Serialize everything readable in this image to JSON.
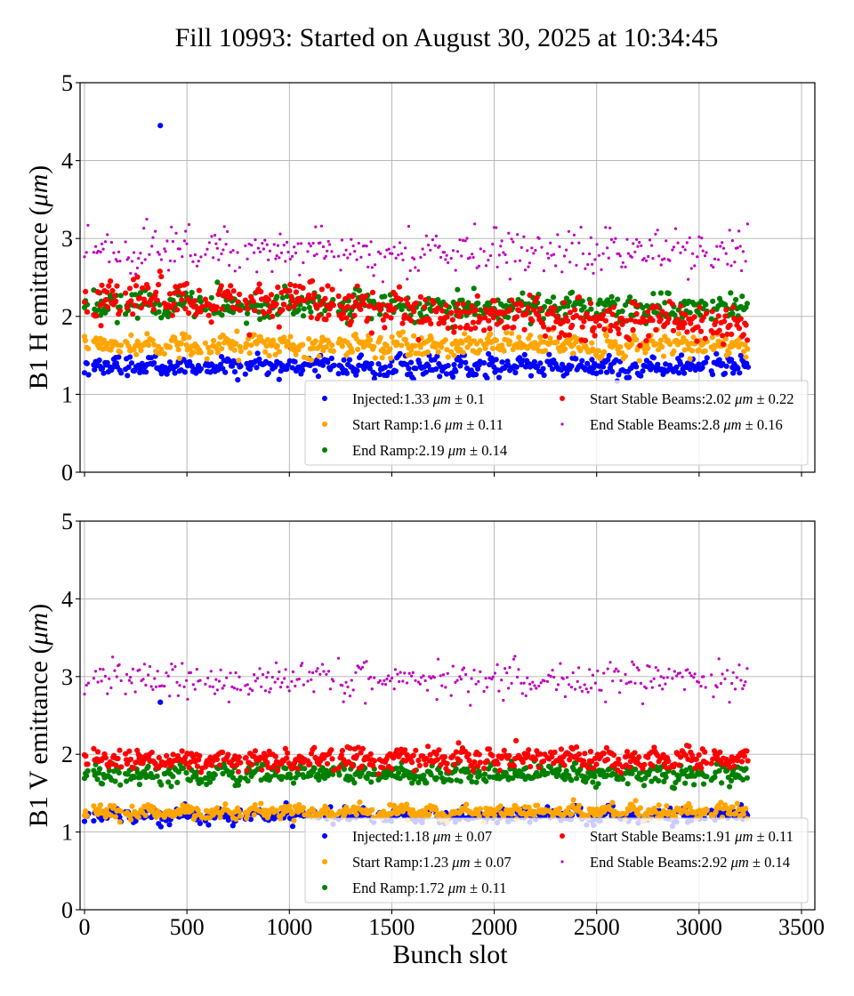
{
  "chart_data": [
    {
      "type": "scatter",
      "panel": "top",
      "title": "Fill 10993: Started on August 30, 2025 at 10:34:45",
      "xlabel": "",
      "ylabel": "B1 H emittance (μm)",
      "xlim": [
        -20,
        3560
      ],
      "ylim": [
        0,
        5
      ],
      "xticks": [
        0,
        500,
        1000,
        1500,
        2000,
        2500,
        3000,
        3500
      ],
      "xtick_labels_visible": false,
      "yticks": [
        0,
        1,
        2,
        3,
        4,
        5
      ],
      "ytick_labels": [
        "0",
        "1",
        "2",
        "3",
        "4",
        "5"
      ],
      "grid": true,
      "legend_position": "lower-right",
      "legend_ncol": 2,
      "series": [
        {
          "name": "Injected",
          "legend": "Injected:1.33 μm ± 0.1",
          "color": "#0000ff",
          "mean": 1.33,
          "std": 0.1,
          "marker": "large"
        },
        {
          "name": "Start Ramp",
          "legend": "Start Ramp:1.6 μm ± 0.11",
          "color": "#ffa500",
          "mean": 1.6,
          "std": 0.11,
          "marker": "large"
        },
        {
          "name": "End Ramp",
          "legend": "End Ramp:2.19 μm ± 0.14",
          "color": "#008000",
          "mean": 2.19,
          "std": 0.14,
          "marker": "large"
        },
        {
          "name": "Start Stable Beams",
          "legend": "Start Stable Beams:2.02 μm ± 0.22",
          "color": "#ff0000",
          "mean": 2.02,
          "std": 0.22,
          "marker": "large"
        },
        {
          "name": "End Stable Beams",
          "legend": "End Stable Beams:2.8 μm ± 0.16",
          "color": "#bf00bf",
          "mean": 2.8,
          "std": 0.16,
          "marker": "small"
        }
      ],
      "outliers": [
        {
          "series": "Injected",
          "x": 370,
          "y": 4.45
        }
      ],
      "trend": {
        "Start Stable Beams": [
          2.25,
          1.85
        ],
        "End Ramp": [
          2.15,
          2.05
        ]
      }
    },
    {
      "type": "scatter",
      "panel": "bottom",
      "title": "",
      "xlabel": "Bunch slot",
      "ylabel": "B1 V emittance (μm)",
      "xlim": [
        -20,
        3560
      ],
      "ylim": [
        0,
        5
      ],
      "xticks": [
        0,
        500,
        1000,
        1500,
        2000,
        2500,
        3000,
        3500
      ],
      "xtick_labels": [
        "0",
        "500",
        "1000",
        "1500",
        "2000",
        "2500",
        "3000",
        "3500"
      ],
      "yticks": [
        0,
        1,
        2,
        3,
        4,
        5
      ],
      "ytick_labels": [
        "0",
        "1",
        "2",
        "3",
        "4",
        "5"
      ],
      "grid": true,
      "legend_position": "lower-right",
      "legend_ncol": 2,
      "series": [
        {
          "name": "Injected",
          "legend": "Injected:1.18 μm ± 0.07",
          "color": "#0000ff",
          "mean": 1.18,
          "std": 0.07,
          "marker": "large"
        },
        {
          "name": "Start Ramp",
          "legend": "Start Ramp:1.23 μm ± 0.07",
          "color": "#ffa500",
          "mean": 1.23,
          "std": 0.07,
          "marker": "large"
        },
        {
          "name": "End Ramp",
          "legend": "End Ramp:1.72 μm ± 0.11",
          "color": "#008000",
          "mean": 1.72,
          "std": 0.11,
          "marker": "large"
        },
        {
          "name": "Start Stable Beams",
          "legend": "Start Stable Beams:1.91 μm ± 0.11",
          "color": "#ff0000",
          "mean": 1.91,
          "std": 0.11,
          "marker": "large"
        },
        {
          "name": "End Stable Beams",
          "legend": "End Stable Beams:2.92 μm ± 0.14",
          "color": "#bf00bf",
          "mean": 2.92,
          "std": 0.14,
          "marker": "small"
        }
      ],
      "outliers": [
        {
          "series": "Injected",
          "x": 370,
          "y": 2.67
        }
      ],
      "trend": {}
    }
  ],
  "bunch_trains": [
    [
      0,
      20
    ],
    [
      45,
      180
    ],
    [
      200,
      380
    ],
    [
      390,
      575
    ],
    [
      590,
      765
    ],
    [
      785,
      945
    ],
    [
      950,
      1075
    ],
    [
      1090,
      1220
    ],
    [
      1240,
      1420
    ],
    [
      1435,
      1620
    ],
    [
      1630,
      1780
    ],
    [
      1790,
      1935
    ],
    [
      1950,
      2080
    ],
    [
      2085,
      2250
    ],
    [
      2260,
      2460
    ],
    [
      2465,
      2630
    ],
    [
      2640,
      2720
    ],
    [
      2725,
      2860
    ],
    [
      2870,
      3040
    ],
    [
      3060,
      3240
    ]
  ],
  "figure": {
    "title": "Fill 10993: Started on August 30, 2025 at 10:34:45",
    "micro_symbol": "μm",
    "pm_symbol": "±"
  }
}
